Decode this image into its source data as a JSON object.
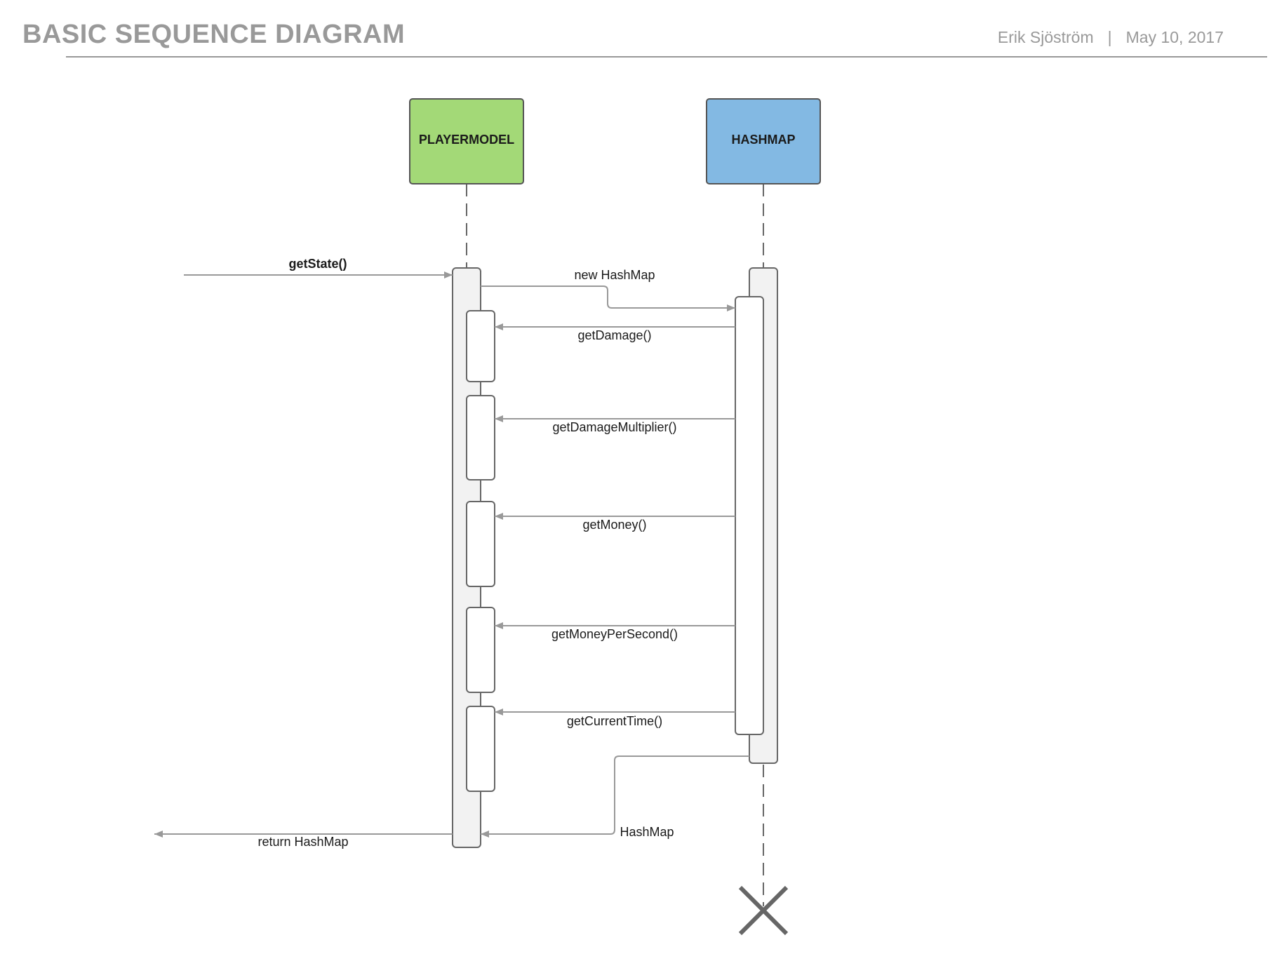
{
  "header": {
    "title": "BASIC SEQUENCE DIAGRAM",
    "author": "Erik Sjöström",
    "separator": "|",
    "date": "May 10, 2017"
  },
  "participants": [
    {
      "name": "PLAYERMODEL",
      "color": "#a3d977"
    },
    {
      "name": "HASHMAP",
      "color": "#83b9e3"
    }
  ],
  "messages": {
    "get_state": "getState()",
    "new_hashmap": "new HashMap",
    "get_damage": "getDamage()",
    "get_damage_multiplier": "getDamageMultiplier()",
    "get_money": "getMoney()",
    "get_money_per_second": "getMoneyPerSecond()",
    "get_current_time": "getCurrentTime()",
    "hashmap_return": "HashMap",
    "return_hashmap": "return HashMap"
  },
  "colors": {
    "line": "#999999",
    "activation_fill": "#f2f2f2",
    "activation_stroke": "#666666",
    "destroy": "#666666"
  }
}
